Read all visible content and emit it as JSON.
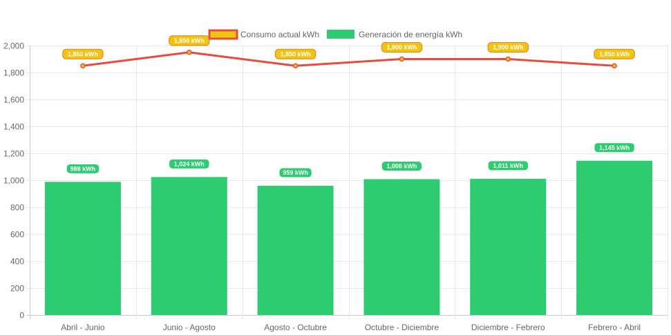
{
  "chart_data": {
    "type": "bar",
    "categories": [
      "Abril - Junio",
      "Junio - Agosto",
      "Agosto - Octubre",
      "Octubre - Diciembre",
      "Diciembre - Febrero",
      "Febrero - Abril"
    ],
    "ylim": [
      0,
      2000
    ],
    "yticks": [
      0,
      200,
      400,
      600,
      800,
      1000,
      1200,
      1400,
      1600,
      1800,
      2000
    ],
    "ytick_labels": [
      "0",
      "200",
      "400",
      "600",
      "800",
      "1,000",
      "1,200",
      "1,400",
      "1,600",
      "1,800",
      "2,000"
    ],
    "grid": true,
    "legend_position": "top",
    "series": [
      {
        "name": "Consumo actual kWh",
        "type": "line",
        "values": [
          1850,
          1950,
          1850,
          1900,
          1900,
          1850
        ],
        "labels": [
          "1,850 kWh",
          "1,950 kWh",
          "1,850 kWh",
          "1,900 kWh",
          "1,900 kWh",
          "1,850 kWh"
        ],
        "color": "#e74c3c",
        "fill": "#f1c40f"
      },
      {
        "name": "Generación de energía kWh",
        "type": "bar",
        "values": [
          988,
          1024,
          959,
          1008,
          1011,
          1145
        ],
        "labels": [
          "988 kWh",
          "1,024 kWh",
          "959 kWh",
          "1,008 kWh",
          "1,011 kWh",
          "1,145 kWh"
        ],
        "color": "#2ecc71"
      }
    ]
  }
}
